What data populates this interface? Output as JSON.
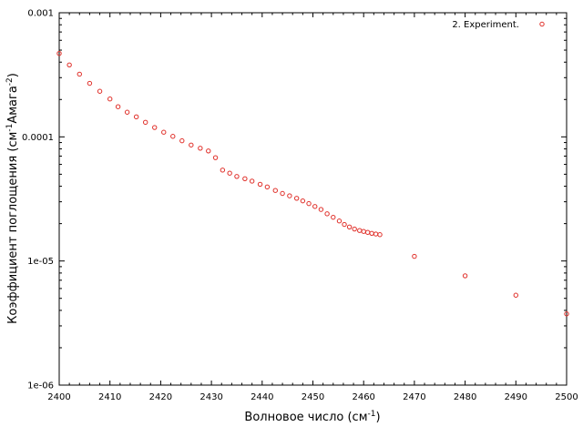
{
  "chart_data": {
    "type": "scatter",
    "xlabel": "Волновое число (см",
    "xlabel_sup": "-1",
    "xlabel_tail": ")",
    "ylabel": "Коэффициент поглощения (см",
    "ylabel_sup1": "-1",
    "ylabel_mid": "Амага",
    "ylabel_sup2": "-2",
    "ylabel_tail": ")",
    "xlim": [
      2400,
      2500
    ],
    "ylim": [
      1e-06,
      0.001
    ],
    "y_scale": "log",
    "x_ticks": [
      "2400",
      "2410",
      "2420",
      "2430",
      "2440",
      "2450",
      "2460",
      "2470",
      "2480",
      "2490",
      "2500"
    ],
    "y_ticks": [
      "1e-06",
      "1e-05",
      "0.0001",
      "0.001"
    ],
    "legend_position": "top-right",
    "marker_color": "#e0302a",
    "series": [
      {
        "name": "2. Experiment.",
        "x": [
          2400,
          2402,
          2404,
          2406,
          2408,
          2410,
          2411.6,
          2413.4,
          2415.2,
          2417,
          2418.8,
          2420.6,
          2422.4,
          2424.2,
          2426,
          2427.8,
          2429.4,
          2430.8,
          2432.2,
          2433.6,
          2435,
          2436.6,
          2438,
          2439.6,
          2441,
          2442.6,
          2444,
          2445.4,
          2446.8,
          2448,
          2449.2,
          2450.4,
          2451.6,
          2452.8,
          2454,
          2455.2,
          2456.2,
          2457.2,
          2458.2,
          2459.2,
          2460,
          2460.8,
          2461.6,
          2462.4,
          2463.2,
          2470,
          2480,
          2490,
          2500
        ],
        "y": [
          0.00047,
          0.00038,
          0.00032,
          0.00027,
          0.000233,
          0.000202,
          0.000175,
          0.000158,
          0.000145,
          0.000131,
          0.000119,
          0.000109,
          0.000101,
          9.3e-05,
          8.6e-05,
          8.1e-05,
          7.7e-05,
          6.8e-05,
          5.4e-05,
          5.1e-05,
          4.8e-05,
          4.6e-05,
          4.4e-05,
          4.15e-05,
          3.95e-05,
          3.7e-05,
          3.5e-05,
          3.35e-05,
          3.2e-05,
          3.05e-05,
          2.9e-05,
          2.75e-05,
          2.6e-05,
          2.4e-05,
          2.25e-05,
          2.1e-05,
          1.97e-05,
          1.88e-05,
          1.81e-05,
          1.76e-05,
          1.73e-05,
          1.7e-05,
          1.67e-05,
          1.65e-05,
          1.63e-05,
          1.09e-05,
          7.6e-06,
          5.3e-06,
          3.75e-06
        ]
      }
    ]
  }
}
